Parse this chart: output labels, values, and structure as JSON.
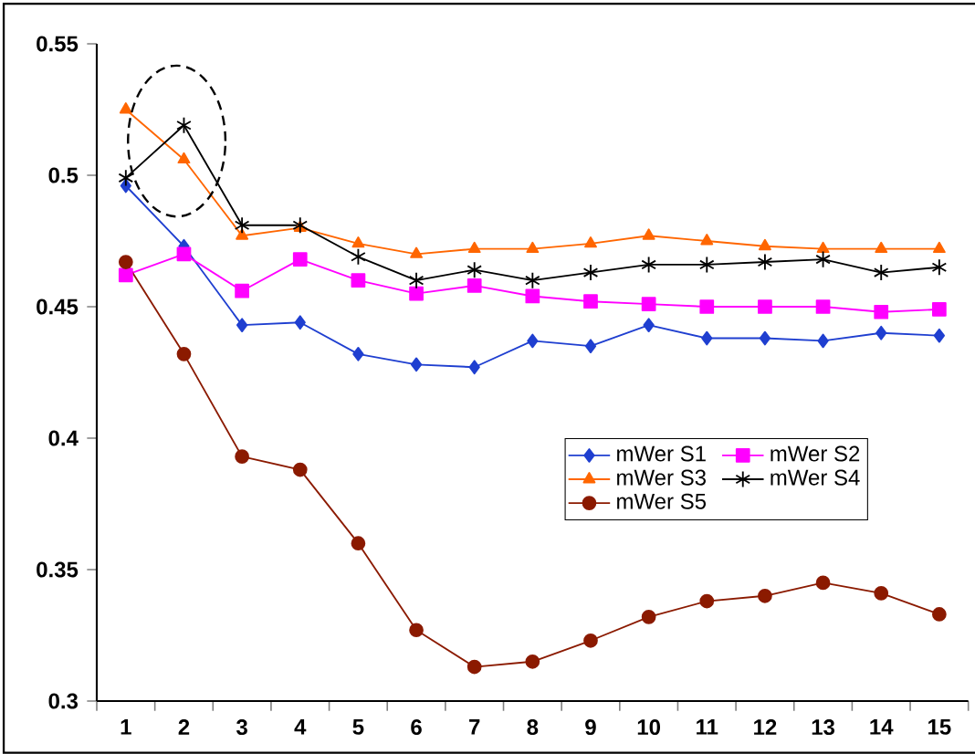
{
  "chart_data": {
    "type": "line",
    "categories": [
      "1",
      "2",
      "3",
      "4",
      "5",
      "6",
      "7",
      "8",
      "9",
      "10",
      "11",
      "12",
      "13",
      "14",
      "15"
    ],
    "ylim": [
      0.3,
      0.55
    ],
    "yticks": [
      0.3,
      0.35,
      0.4,
      0.45,
      0.5,
      0.55
    ],
    "grid": false,
    "legend": "right",
    "line_style": "solid",
    "series": [
      {
        "name": "mWer S1",
        "color": "#1f3fd0",
        "marker": "diamond",
        "values": [
          0.496,
          0.473,
          0.443,
          0.444,
          0.432,
          0.428,
          0.427,
          0.437,
          0.435,
          0.443,
          0.438,
          0.438,
          0.437,
          0.44,
          0.439
        ]
      },
      {
        "name": "mWer S2",
        "color": "#ff00ff",
        "marker": "square",
        "values": [
          0.462,
          0.47,
          0.456,
          0.468,
          0.46,
          0.455,
          0.458,
          0.454,
          0.452,
          0.451,
          0.45,
          0.45,
          0.45,
          0.448,
          0.449
        ]
      },
      {
        "name": "mWer S3",
        "color": "#ff6600",
        "marker": "triangle",
        "values": [
          0.525,
          0.506,
          0.477,
          0.48,
          0.474,
          0.47,
          0.472,
          0.472,
          0.474,
          0.477,
          0.475,
          0.473,
          0.472,
          0.472,
          0.472
        ]
      },
      {
        "name": "mWer S4",
        "color": "#000000",
        "marker": "cross",
        "values": [
          0.499,
          0.519,
          0.481,
          0.481,
          0.469,
          0.46,
          0.464,
          0.46,
          0.463,
          0.466,
          0.466,
          0.467,
          0.468,
          0.463,
          0.465
        ]
      },
      {
        "name": "mWer S5",
        "color": "#8b1a00",
        "marker": "circle",
        "values": [
          0.467,
          0.432,
          0.393,
          0.388,
          0.36,
          0.327,
          0.313,
          0.315,
          0.323,
          0.332,
          0.338,
          0.34,
          0.345,
          0.341,
          0.333
        ]
      }
    ]
  }
}
